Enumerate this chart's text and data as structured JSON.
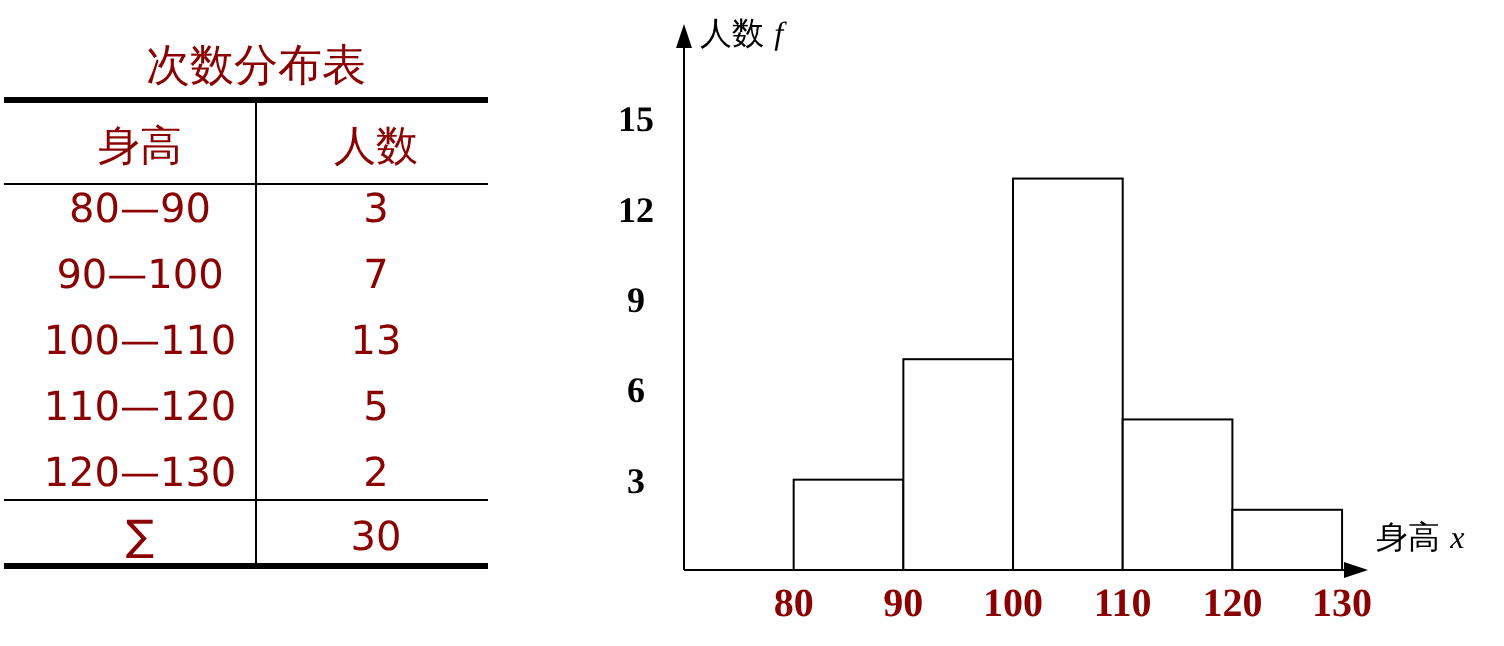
{
  "chart_data": [
    {
      "type": "other",
      "title": "次数分布表",
      "annotations": [
        "身高",
        "人数",
        "80—90",
        "3",
        "90—100",
        "7",
        "100—110",
        "13",
        "110—120",
        "5",
        "120—130",
        "2",
        "∑",
        "30"
      ]
    },
    {
      "type": "histogram",
      "xlabel": "身高 *x*",
      "ylabel": "人数 *f*",
      "bins": [
        80,
        90,
        100,
        110,
        120,
        130
      ],
      "values": [
        3,
        7,
        13,
        5,
        2
      ],
      "color": "#ffffff",
      "xlim": [
        70,
        132
      ],
      "xticks": [
        80,
        90,
        100,
        110,
        120,
        130
      ],
      "ylim": [
        0,
        18
      ],
      "yticks": [
        3,
        6,
        9,
        12,
        15
      ]
    }
  ]
}
